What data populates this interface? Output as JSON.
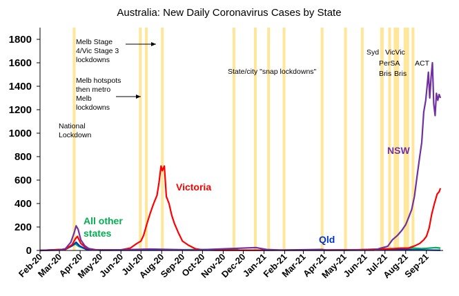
{
  "chart_data": {
    "type": "line",
    "title": "Australia: New Daily Coronavirus Cases by State",
    "xlabel": "",
    "ylabel": "",
    "ylim": [
      0,
      1900
    ],
    "y_ticks": [
      0,
      200,
      400,
      600,
      800,
      1000,
      1200,
      1400,
      1600,
      1800
    ],
    "x_range": [
      "2020-02-01",
      "2021-09-26"
    ],
    "x_ticks": [
      {
        "date": "2020-02-01",
        "label": "Feb-20"
      },
      {
        "date": "2020-03-01",
        "label": "Mar-20"
      },
      {
        "date": "2020-04-01",
        "label": "Apr-20"
      },
      {
        "date": "2020-05-01",
        "label": "May-20"
      },
      {
        "date": "2020-06-01",
        "label": "Jun-20"
      },
      {
        "date": "2020-07-01",
        "label": "Jul-20"
      },
      {
        "date": "2020-08-01",
        "label": "Aug-20"
      },
      {
        "date": "2020-09-01",
        "label": "Sep-20"
      },
      {
        "date": "2020-10-01",
        "label": "Oct-20"
      },
      {
        "date": "2020-11-01",
        "label": "Nov-20"
      },
      {
        "date": "2020-12-01",
        "label": "Dec-20"
      },
      {
        "date": "2021-01-01",
        "label": "Jan-21"
      },
      {
        "date": "2021-02-01",
        "label": "Feb-21"
      },
      {
        "date": "2021-03-01",
        "label": "Mar-21"
      },
      {
        "date": "2021-04-01",
        "label": "Apr-21"
      },
      {
        "date": "2021-05-01",
        "label": "May-21"
      },
      {
        "date": "2021-06-01",
        "label": "Jun-21"
      },
      {
        "date": "2021-07-01",
        "label": "Jul-21"
      },
      {
        "date": "2021-08-01",
        "label": "Aug-21"
      },
      {
        "date": "2021-09-01",
        "label": "Sep-21"
      }
    ],
    "lockdown_dates": [
      "2020-03-23",
      "2020-06-30",
      "2020-07-09",
      "2020-08-02",
      "2020-11-17",
      "2020-12-19",
      "2021-01-08",
      "2021-01-31",
      "2021-03-29",
      "2021-05-03",
      "2021-05-28",
      "2021-06-26",
      "2021-06-27",
      "2021-07-08",
      "2021-07-16",
      "2021-07-20",
      "2021-07-31",
      "2021-08-04",
      "2021-08-12"
    ],
    "series": [
      {
        "name": "NSW",
        "color": "#7030A0",
        "points": [
          [
            "2020-02-01",
            0
          ],
          [
            "2020-03-01",
            3
          ],
          [
            "2020-03-10",
            15
          ],
          [
            "2020-03-18",
            70
          ],
          [
            "2020-03-23",
            150
          ],
          [
            "2020-03-26",
            210
          ],
          [
            "2020-03-29",
            180
          ],
          [
            "2020-04-02",
            90
          ],
          [
            "2020-04-08",
            40
          ],
          [
            "2020-04-15",
            12
          ],
          [
            "2020-04-25",
            4
          ],
          [
            "2020-05-15",
            3
          ],
          [
            "2020-07-15",
            12
          ],
          [
            "2020-08-15",
            8
          ],
          [
            "2020-09-15",
            3
          ],
          [
            "2020-12-20",
            25
          ],
          [
            "2021-01-05",
            8
          ],
          [
            "2021-02-01",
            2
          ],
          [
            "2021-05-01",
            2
          ],
          [
            "2021-06-15",
            3
          ],
          [
            "2021-06-25",
            20
          ],
          [
            "2021-07-05",
            35
          ],
          [
            "2021-07-12",
            90
          ],
          [
            "2021-07-20",
            130
          ],
          [
            "2021-07-26",
            170
          ],
          [
            "2021-08-01",
            220
          ],
          [
            "2021-08-06",
            290
          ],
          [
            "2021-08-10",
            350
          ],
          [
            "2021-08-14",
            460
          ],
          [
            "2021-08-18",
            630
          ],
          [
            "2021-08-22",
            800
          ],
          [
            "2021-08-25",
            920
          ],
          [
            "2021-08-28",
            1180
          ],
          [
            "2021-08-31",
            1280
          ],
          [
            "2021-09-02",
            1400
          ],
          [
            "2021-09-04",
            1520
          ],
          [
            "2021-09-06",
            1300
          ],
          [
            "2021-09-08",
            1480
          ],
          [
            "2021-09-10",
            1600
          ],
          [
            "2021-09-12",
            1250
          ],
          [
            "2021-09-14",
            1150
          ],
          [
            "2021-09-16",
            1340
          ],
          [
            "2021-09-18",
            1280
          ],
          [
            "2021-09-20",
            1330
          ],
          [
            "2021-09-22",
            1300
          ]
        ]
      },
      {
        "name": "Victoria",
        "color": "#FF0000",
        "points": [
          [
            "2020-02-01",
            0
          ],
          [
            "2020-03-10",
            10
          ],
          [
            "2020-03-20",
            50
          ],
          [
            "2020-03-25",
            100
          ],
          [
            "2020-03-28",
            120
          ],
          [
            "2020-04-02",
            60
          ],
          [
            "2020-04-10",
            20
          ],
          [
            "2020-04-25",
            5
          ],
          [
            "2020-06-01",
            5
          ],
          [
            "2020-06-15",
            20
          ],
          [
            "2020-06-25",
            60
          ],
          [
            "2020-07-01",
            80
          ],
          [
            "2020-07-05",
            130
          ],
          [
            "2020-07-10",
            230
          ],
          [
            "2020-07-15",
            320
          ],
          [
            "2020-07-20",
            400
          ],
          [
            "2020-07-25",
            470
          ],
          [
            "2020-07-28",
            580
          ],
          [
            "2020-07-31",
            720
          ],
          [
            "2020-08-02",
            680
          ],
          [
            "2020-08-05",
            720
          ],
          [
            "2020-08-08",
            460
          ],
          [
            "2020-08-12",
            400
          ],
          [
            "2020-08-16",
            300
          ],
          [
            "2020-08-20",
            230
          ],
          [
            "2020-08-26",
            150
          ],
          [
            "2020-09-01",
            80
          ],
          [
            "2020-09-10",
            45
          ],
          [
            "2020-09-20",
            15
          ],
          [
            "2020-10-01",
            5
          ],
          [
            "2020-10-20",
            2
          ],
          [
            "2021-02-10",
            3
          ],
          [
            "2021-05-25",
            5
          ],
          [
            "2021-06-05",
            8
          ],
          [
            "2021-07-15",
            15
          ],
          [
            "2021-07-25",
            20
          ],
          [
            "2021-08-05",
            20
          ],
          [
            "2021-08-15",
            40
          ],
          [
            "2021-08-22",
            60
          ],
          [
            "2021-08-28",
            90
          ],
          [
            "2021-09-01",
            120
          ],
          [
            "2021-09-05",
            190
          ],
          [
            "2021-09-09",
            310
          ],
          [
            "2021-09-13",
            400
          ],
          [
            "2021-09-17",
            480
          ],
          [
            "2021-09-20",
            500
          ],
          [
            "2021-09-22",
            530
          ]
        ]
      },
      {
        "name": "Qld",
        "color": "#0033CC",
        "points": [
          [
            "2020-02-01",
            0
          ],
          [
            "2020-03-10",
            10
          ],
          [
            "2020-03-20",
            40
          ],
          [
            "2020-03-26",
            70
          ],
          [
            "2020-03-31",
            40
          ],
          [
            "2020-04-10",
            10
          ],
          [
            "2020-05-01",
            2
          ],
          [
            "2020-08-01",
            3
          ],
          [
            "2021-01-08",
            2
          ],
          [
            "2021-03-29",
            8
          ],
          [
            "2021-04-05",
            3
          ],
          [
            "2021-07-31",
            10
          ],
          [
            "2021-08-10",
            5
          ],
          [
            "2021-09-22",
            2
          ]
        ]
      },
      {
        "name": "All other states",
        "color": "#00B050",
        "points": [
          [
            "2020-02-01",
            0
          ],
          [
            "2020-03-10",
            8
          ],
          [
            "2020-03-20",
            40
          ],
          [
            "2020-03-25",
            55
          ],
          [
            "2020-03-30",
            35
          ],
          [
            "2020-04-10",
            10
          ],
          [
            "2020-05-01",
            2
          ],
          [
            "2020-11-17",
            10
          ],
          [
            "2020-11-25",
            3
          ],
          [
            "2021-05-01",
            2
          ],
          [
            "2021-08-12",
            20
          ],
          [
            "2021-08-25",
            15
          ],
          [
            "2021-09-05",
            20
          ],
          [
            "2021-09-15",
            25
          ],
          [
            "2021-09-22",
            20
          ]
        ]
      }
    ],
    "series_labels": {
      "nsw": "NSW",
      "victoria": "Victoria",
      "qld": "Qld",
      "others_line1": "All other",
      "others_line2": "states"
    },
    "annotations": {
      "national_lockdown": [
        "National",
        "Lockdown"
      ],
      "melb_hotspots": [
        "Melb hotspots",
        "then metro",
        "Melb",
        "lockdowns"
      ],
      "melb_stage4": [
        "Melb Stage",
        "4/Vic Stage 3",
        "lockdowns"
      ],
      "snap_lockdowns": "State/city \"snap lockdowns\"",
      "syd": "Syd",
      "per_sa": "PerSA",
      "bris_1": "Bris",
      "vic_vic": "VicVic",
      "bris_2": "Bris",
      "act": "ACT"
    },
    "colors": {
      "lockdown_bar": "#FFE699",
      "axis": "#000000"
    },
    "grid": false,
    "legend": "inline labels"
  }
}
